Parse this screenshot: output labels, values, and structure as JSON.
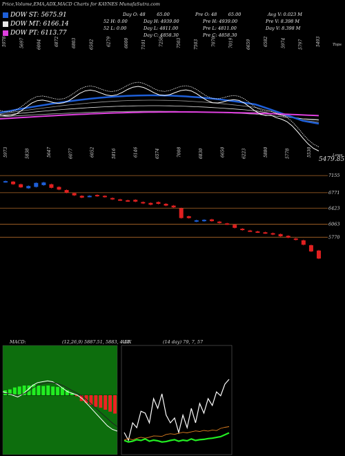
{
  "header": {
    "title": "Price,Volume,EMA,ADX,MACD Charts for KAYNES MunafaSutra.com"
  },
  "legend": [
    {
      "label": "DOW ST: 5675.91",
      "color": "#1e5fd8"
    },
    {
      "label": "DOW MT: 6166.14",
      "color": "#e8e8e8"
    },
    {
      "label": "DOW PT: 6113.77",
      "color": "#e040e0"
    }
  ],
  "stats": [
    {
      "left": "Day O: 48",
      "right": "65.00"
    },
    {
      "left": "52  H: 0.00",
      "right": ""
    },
    {
      "left": "52  L: 0.00",
      "right": ""
    },
    {
      "left": "Day H: 4939.00",
      "right": ""
    },
    {
      "left": "Day L: 4811.00",
      "right": ""
    },
    {
      "left": "Day C: 4858.30",
      "right": ""
    },
    {
      "left": "Pre  O: 48",
      "right": "65.00"
    },
    {
      "left": "Pre  H: 4939.00",
      "right": ""
    },
    {
      "left": "Pre  L: 4811.00",
      "right": ""
    },
    {
      "left": "Pre  C: 4858.30",
      "right": ""
    },
    {
      "left": "Avg V: 0.023  M",
      "right": ""
    },
    {
      "left": "Pre  V: 8.398  M",
      "right": ""
    },
    {
      "left": "Day V: 8.398  M",
      "right": ""
    }
  ],
  "chart_data": [
    {
      "type": "line",
      "name": "price-ema",
      "top_labels": [
        "5978",
        "5697",
        "6004",
        "6872",
        "6803",
        "6502",
        "6279",
        "6600",
        "7101",
        "7258",
        "7503",
        "7503",
        "7070",
        "7019",
        "6659",
        "6582",
        "5974",
        "5797",
        "5493"
      ],
      "bottom_labels": [
        "5973",
        "5838",
        "5647",
        "6077",
        "6052",
        "5816",
        "6146",
        "6574",
        "7008",
        "6830",
        "6650",
        "6223",
        "5880",
        "5778",
        "5530"
      ],
      "last_price": "5479.85",
      "top_note": "Tops",
      "bottom_note": "Lows"
    },
    {
      "type": "bar",
      "name": "candles",
      "levels": [
        "7155",
        "6771",
        "6423",
        "6063",
        "5770"
      ],
      "open": [
        7010,
        7020,
        6960,
        6870,
        6900,
        6940,
        6960,
        6900,
        6830,
        6760,
        6700,
        6680,
        6720,
        6700,
        6650,
        6620,
        6600,
        6610,
        6560,
        6540,
        6560,
        6520,
        6480,
        6420,
        6240,
        6120,
        6130,
        6170,
        6120,
        6080,
        6050,
        5960,
        5920,
        5900,
        5880,
        5860,
        5840,
        5800,
        5740,
        5700,
        5590,
        5470
      ],
      "close": [
        7030,
        6960,
        6890,
        6920,
        6990,
        7000,
        6880,
        6840,
        6770,
        6710,
        6660,
        6700,
        6690,
        6670,
        6620,
        6600,
        6580,
        6570,
        6530,
        6500,
        6520,
        6480,
        6440,
        6200,
        6200,
        6150,
        6160,
        6130,
        6090,
        6060,
        5980,
        5930,
        5910,
        5880,
        5860,
        5830,
        5790,
        5760,
        5710,
        5600,
        5450,
        5290
      ]
    },
    {
      "type": "line",
      "name": "macd",
      "title": "MACD:",
      "params": "(12,26,9) 5887.51, 5883, 4.51",
      "macd": [
        0.2,
        0.1,
        0.0,
        -0.1,
        0.05,
        0.3,
        0.55,
        0.7,
        0.75,
        0.8,
        0.75,
        0.6,
        0.4,
        0.2,
        0.1,
        0.0,
        -0.2,
        -0.5,
        -0.8,
        -1.1,
        -1.4,
        -1.7,
        -1.9,
        -2.0
      ],
      "signal": [
        0.1,
        0.1,
        0.05,
        0.0,
        0.05,
        0.2,
        0.4,
        0.55,
        0.65,
        0.7,
        0.7,
        0.65,
        0.55,
        0.4,
        0.25,
        0.1,
        -0.05,
        -0.3,
        -0.55,
        -0.8,
        -1.05,
        -1.3,
        -1.55,
        -1.75
      ],
      "histogram": [
        0.5,
        0.6,
        0.8,
        0.9,
        1.0,
        1.0,
        1.1,
        1.0,
        0.95,
        1.0,
        0.9,
        0.85,
        0.8,
        0.5,
        0.2,
        -0.1,
        -0.6,
        -0.8,
        -1.0,
        -1.2,
        -1.3,
        -1.5,
        -1.7,
        -1.9
      ]
    },
    {
      "type": "line",
      "name": "adx",
      "title": "ADX",
      "params": "(14 day) 79, 7, 57",
      "adx": [
        20,
        12,
        30,
        25,
        42,
        40,
        30,
        55,
        45,
        60,
        38,
        30,
        35,
        20,
        38,
        25,
        45,
        30,
        50,
        40,
        55,
        48,
        62,
        58,
        70,
        75
      ],
      "plus_di": [
        62,
        58,
        64,
        60,
        58,
        62,
        60,
        57,
        59,
        61,
        56,
        55,
        58,
        56,
        54,
        57,
        55,
        53,
        56,
        54,
        57,
        55,
        58,
        52,
        50,
        49
      ],
      "minus_di": [
        70,
        74,
        72,
        68,
        70,
        66,
        72,
        69,
        71,
        74,
        73,
        70,
        68,
        72,
        69,
        71,
        66,
        70,
        68,
        67,
        65,
        64,
        62,
        60,
        55,
        50
      ]
    }
  ]
}
